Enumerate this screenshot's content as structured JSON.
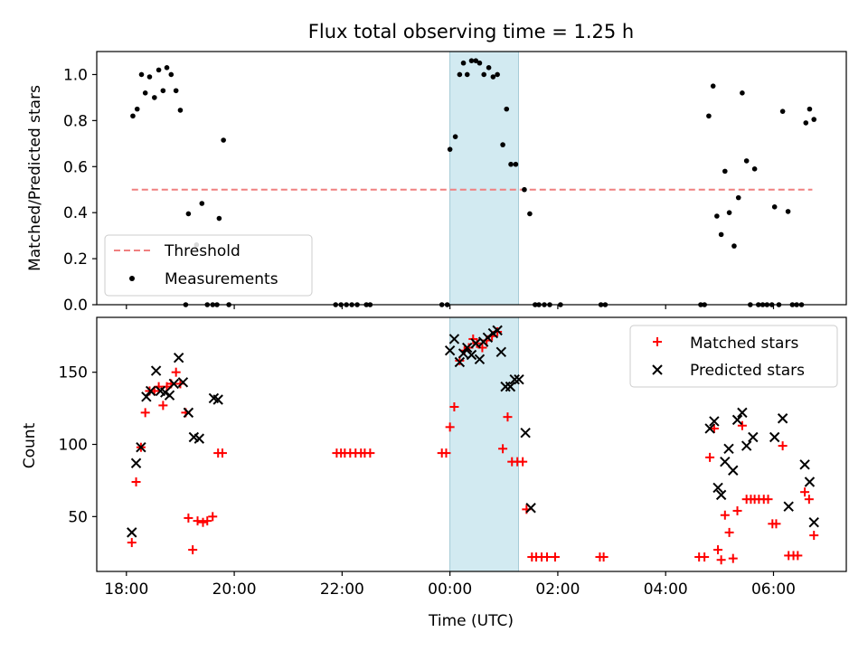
{
  "chart_data": {
    "title": "Flux total observing time = 1.25 h",
    "shaded_interval": {
      "x0": 0.0,
      "x1": 1.27,
      "color": "#add8e6"
    },
    "xlabel": "Time (UTC)",
    "xlim": [
      -6.55,
      7.35
    ],
    "x_ticks": [
      {
        "x": -6,
        "label": "18:00"
      },
      {
        "x": -4,
        "label": "20:00"
      },
      {
        "x": -2,
        "label": "22:00"
      },
      {
        "x": 0,
        "label": "00:00"
      },
      {
        "x": 2,
        "label": "02:00"
      },
      {
        "x": 4,
        "label": "04:00"
      },
      {
        "x": 6,
        "label": "06:00"
      }
    ],
    "top": {
      "type": "scatter",
      "ylabel": "Matched/Predicted stars",
      "ylim": [
        0,
        1.1
      ],
      "y_ticks": [
        "0.0",
        "0.2",
        "0.4",
        "0.6",
        "0.8",
        "1.0"
      ],
      "grid": false,
      "legend": {
        "position": "lower-left",
        "entries": [
          "Threshold",
          "Measurements"
        ]
      },
      "threshold": {
        "name": "Threshold",
        "value": 0.5,
        "x_range": [
          -5.9,
          6.72
        ],
        "color": "#f08080"
      },
      "series": [
        {
          "name": "Measurements",
          "color": "#000000",
          "points": [
            [
              -5.88,
              0.82
            ],
            [
              -5.8,
              0.85
            ],
            [
              -5.72,
              1.0
            ],
            [
              -5.65,
              0.92
            ],
            [
              -5.57,
              0.99
            ],
            [
              -5.48,
              0.9
            ],
            [
              -5.4,
              1.02
            ],
            [
              -5.32,
              0.93
            ],
            [
              -5.25,
              1.03
            ],
            [
              -5.17,
              1.0
            ],
            [
              -5.08,
              0.93
            ],
            [
              -5.0,
              0.845
            ],
            [
              -4.9,
              0.0
            ],
            [
              -4.85,
              0.395
            ],
            [
              -4.7,
              0.26
            ],
            [
              -4.6,
              0.44
            ],
            [
              -4.5,
              0.0
            ],
            [
              -4.4,
              0.0
            ],
            [
              -4.32,
              0.0
            ],
            [
              -4.28,
              0.375
            ],
            [
              -4.2,
              0.715
            ],
            [
              -4.1,
              0.0
            ],
            [
              -2.12,
              0.0
            ],
            [
              -2.02,
              0.0
            ],
            [
              -1.92,
              0.0
            ],
            [
              -1.82,
              0.0
            ],
            [
              -1.72,
              0.0
            ],
            [
              -1.55,
              0.0
            ],
            [
              -1.48,
              0.0
            ],
            [
              -0.15,
              0.0
            ],
            [
              -0.05,
              0.0
            ],
            [
              0.0,
              0.675
            ],
            [
              0.1,
              0.73
            ],
            [
              0.18,
              1.0
            ],
            [
              0.25,
              1.05
            ],
            [
              0.32,
              1.0
            ],
            [
              0.4,
              1.06
            ],
            [
              0.48,
              1.06
            ],
            [
              0.55,
              1.05
            ],
            [
              0.63,
              1.0
            ],
            [
              0.72,
              1.03
            ],
            [
              0.8,
              0.99
            ],
            [
              0.88,
              1.0
            ],
            [
              0.98,
              0.695
            ],
            [
              1.05,
              0.85
            ],
            [
              1.13,
              0.61
            ],
            [
              1.22,
              0.61
            ],
            [
              1.38,
              0.5
            ],
            [
              1.48,
              0.395
            ],
            [
              1.58,
              0.0
            ],
            [
              1.65,
              0.0
            ],
            [
              1.75,
              0.0
            ],
            [
              1.85,
              0.0
            ],
            [
              2.05,
              0.0
            ],
            [
              2.8,
              0.0
            ],
            [
              2.88,
              0.0
            ],
            [
              4.65,
              0.0
            ],
            [
              4.72,
              0.0
            ],
            [
              4.8,
              0.82
            ],
            [
              4.88,
              0.95
            ],
            [
              4.95,
              0.385
            ],
            [
              5.03,
              0.305
            ],
            [
              5.1,
              0.58
            ],
            [
              5.18,
              0.4
            ],
            [
              5.27,
              0.255
            ],
            [
              5.35,
              0.465
            ],
            [
              5.42,
              0.92
            ],
            [
              5.5,
              0.625
            ],
            [
              5.57,
              0.0
            ],
            [
              5.65,
              0.59
            ],
            [
              5.72,
              0.0
            ],
            [
              5.8,
              0.0
            ],
            [
              5.88,
              0.0
            ],
            [
              5.97,
              0.0
            ],
            [
              6.02,
              0.425
            ],
            [
              6.1,
              0.0
            ],
            [
              6.17,
              0.84
            ],
            [
              6.27,
              0.405
            ],
            [
              6.35,
              0.0
            ],
            [
              6.43,
              0.0
            ],
            [
              6.52,
              0.0
            ],
            [
              6.6,
              0.79
            ],
            [
              6.67,
              0.85
            ],
            [
              6.75,
              0.805
            ]
          ]
        }
      ]
    },
    "bottom": {
      "type": "scatter",
      "ylabel": "Count",
      "ylim": [
        12,
        188
      ],
      "y_ticks": [
        "50",
        "100",
        "150"
      ],
      "grid": false,
      "legend": {
        "position": "top-right",
        "entries": [
          "Matched stars",
          "Predicted stars"
        ]
      },
      "series": [
        {
          "name": "Matched stars",
          "marker": "+",
          "color": "#ff0000",
          "points": [
            [
              -5.9,
              32
            ],
            [
              -5.82,
              74
            ],
            [
              -5.73,
              98
            ],
            [
              -5.65,
              122
            ],
            [
              -5.57,
              137
            ],
            [
              -5.48,
              137
            ],
            [
              -5.4,
              140
            ],
            [
              -5.32,
              127
            ],
            [
              -5.25,
              140
            ],
            [
              -5.17,
              142
            ],
            [
              -5.08,
              150
            ],
            [
              -5.0,
              142
            ],
            [
              -4.9,
              122
            ],
            [
              -4.85,
              49
            ],
            [
              -4.77,
              27
            ],
            [
              -4.68,
              47
            ],
            [
              -4.58,
              46
            ],
            [
              -4.5,
              47
            ],
            [
              -4.4,
              50
            ],
            [
              -4.3,
              94
            ],
            [
              -4.22,
              94
            ],
            [
              -2.1,
              94
            ],
            [
              -2.02,
              94
            ],
            [
              -1.95,
              94
            ],
            [
              -1.85,
              94
            ],
            [
              -1.75,
              94
            ],
            [
              -1.65,
              94
            ],
            [
              -1.58,
              94
            ],
            [
              -1.48,
              94
            ],
            [
              -0.15,
              94
            ],
            [
              -0.07,
              94
            ],
            [
              0.0,
              112
            ],
            [
              0.08,
              126
            ],
            [
              0.18,
              158
            ],
            [
              0.27,
              165
            ],
            [
              0.35,
              167
            ],
            [
              0.43,
              173
            ],
            [
              0.5,
              170
            ],
            [
              0.6,
              167
            ],
            [
              0.68,
              172
            ],
            [
              0.78,
              175
            ],
            [
              0.88,
              178
            ],
            [
              0.98,
              97
            ],
            [
              1.07,
              119
            ],
            [
              1.15,
              88
            ],
            [
              1.25,
              88
            ],
            [
              1.35,
              88
            ],
            [
              1.42,
              55
            ],
            [
              1.52,
              22
            ],
            [
              1.6,
              22
            ],
            [
              1.7,
              22
            ],
            [
              1.8,
              22
            ],
            [
              1.95,
              22
            ],
            [
              2.78,
              22
            ],
            [
              2.85,
              22
            ],
            [
              4.62,
              22
            ],
            [
              4.72,
              22
            ],
            [
              4.82,
              91
            ],
            [
              4.9,
              111
            ],
            [
              4.97,
              27
            ],
            [
              5.03,
              20
            ],
            [
              5.1,
              51
            ],
            [
              5.18,
              39
            ],
            [
              5.25,
              21
            ],
            [
              5.33,
              54
            ],
            [
              5.42,
              113
            ],
            [
              5.5,
              62
            ],
            [
              5.58,
              62
            ],
            [
              5.65,
              62
            ],
            [
              5.73,
              62
            ],
            [
              5.82,
              62
            ],
            [
              5.9,
              62
            ],
            [
              5.98,
              45
            ],
            [
              6.05,
              45
            ],
            [
              6.17,
              99
            ],
            [
              6.28,
              23
            ],
            [
              6.37,
              23
            ],
            [
              6.45,
              23
            ],
            [
              6.58,
              67
            ],
            [
              6.66,
              62
            ],
            [
              6.75,
              37
            ]
          ]
        },
        {
          "name": "Predicted stars",
          "marker": "x",
          "color": "#000000",
          "points": [
            [
              -5.9,
              39
            ],
            [
              -5.82,
              87
            ],
            [
              -5.73,
              98
            ],
            [
              -5.63,
              133
            ],
            [
              -5.55,
              137
            ],
            [
              -5.45,
              151
            ],
            [
              -5.37,
              137
            ],
            [
              -5.28,
              136
            ],
            [
              -5.2,
              134
            ],
            [
              -5.12,
              142
            ],
            [
              -5.03,
              160
            ],
            [
              -4.95,
              143
            ],
            [
              -4.85,
              122
            ],
            [
              -4.75,
              105
            ],
            [
              -4.65,
              104
            ],
            [
              -4.38,
              132
            ],
            [
              -4.3,
              131
            ],
            [
              0.0,
              165
            ],
            [
              0.08,
              173
            ],
            [
              0.18,
              157
            ],
            [
              0.25,
              163
            ],
            [
              0.32,
              167
            ],
            [
              0.4,
              162
            ],
            [
              0.48,
              170
            ],
            [
              0.55,
              159
            ],
            [
              0.62,
              171
            ],
            [
              0.7,
              174
            ],
            [
              0.8,
              177
            ],
            [
              0.88,
              179
            ],
            [
              0.95,
              164
            ],
            [
              1.03,
              140
            ],
            [
              1.12,
              140
            ],
            [
              1.2,
              145
            ],
            [
              1.28,
              145
            ],
            [
              1.4,
              108
            ],
            [
              1.5,
              56
            ],
            [
              4.82,
              111
            ],
            [
              4.9,
              116
            ],
            [
              4.97,
              70
            ],
            [
              5.03,
              65
            ],
            [
              5.1,
              88
            ],
            [
              5.17,
              97
            ],
            [
              5.25,
              82
            ],
            [
              5.33,
              117
            ],
            [
              5.42,
              122
            ],
            [
              5.5,
              99
            ],
            [
              5.62,
              105
            ],
            [
              6.02,
              105
            ],
            [
              6.17,
              118
            ],
            [
              6.28,
              57
            ],
            [
              6.58,
              86
            ],
            [
              6.67,
              74
            ],
            [
              6.75,
              46
            ]
          ]
        }
      ]
    }
  }
}
